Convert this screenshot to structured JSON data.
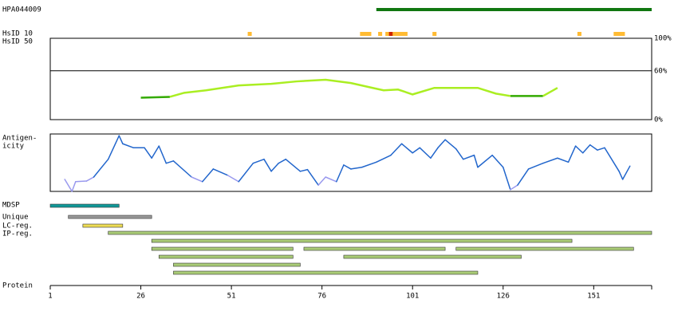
{
  "chart_data": {
    "type": "feature-map",
    "xlim": [
      1,
      167
    ],
    "xticks": [
      1,
      26,
      51,
      76,
      101,
      126,
      151
    ],
    "x_label": "Protein",
    "antibody": {
      "name": "HPA044009",
      "start": 91,
      "end": 167,
      "color": "#117711"
    },
    "hsid10": {
      "name": "HsID 10",
      "positions": [
        56,
        87,
        88,
        89,
        92,
        94,
        95,
        96,
        97,
        98,
        99,
        107,
        147,
        157,
        158,
        159
      ],
      "colors": [
        "#ffbb33",
        "#ffbb33",
        "#ffbb33",
        "#ffbb33",
        "#ffbb33",
        "#ffbb33",
        "#cc2200",
        "#ffbb33",
        "#ffbb33",
        "#ffbb33",
        "#ffbb33",
        "#ffbb33",
        "#ffbb33",
        "#ffbb33",
        "#ffbb33",
        "#ffbb33"
      ]
    },
    "hsid50": {
      "name": "HsID 50",
      "ylim": [
        0,
        100
      ],
      "yticks": [
        {
          "value": 100,
          "label": "100%"
        },
        {
          "value": 60,
          "label": "60%"
        },
        {
          "value": 0,
          "label": "0%"
        }
      ],
      "x": [
        26,
        34,
        38,
        44,
        53,
        62,
        69,
        77,
        84,
        90,
        93,
        97,
        101,
        107,
        112,
        119,
        124,
        128,
        132,
        137,
        141
      ],
      "series": [
        {
          "color": "#33aa00",
          "values": [
            27,
            28,
            null,
            null,
            null,
            null,
            null,
            null,
            null,
            null,
            null,
            null,
            null,
            null,
            null,
            null,
            null,
            29,
            29,
            29,
            null
          ]
        },
        {
          "color": "#aaee22",
          "values": [
            null,
            28,
            33,
            36,
            42,
            44,
            47,
            49,
            45,
            39,
            36,
            37,
            31,
            39,
            39,
            39,
            32,
            29,
            null,
            29,
            39
          ]
        }
      ]
    },
    "antigenicity": {
      "label_lines": [
        "Antigen-",
        "icity"
      ],
      "ylim": [
        0,
        100
      ],
      "x": [
        5,
        7,
        8,
        11,
        13,
        17,
        20,
        21,
        24,
        27,
        29,
        31,
        33,
        35,
        40,
        43,
        46,
        50,
        53,
        57,
        60,
        62,
        64,
        66,
        70,
        72,
        75,
        77,
        80,
        82,
        84,
        87,
        91,
        95,
        98,
        101,
        103,
        106,
        108,
        110,
        113,
        115,
        118,
        119,
        123,
        126,
        128,
        130,
        133,
        137,
        141,
        144,
        146,
        148,
        150,
        152,
        154,
        158,
        159,
        161
      ],
      "values": [
        21,
        0,
        17,
        18,
        25,
        56,
        97,
        83,
        76,
        76,
        58,
        79,
        49,
        53,
        25,
        17,
        39,
        28,
        17,
        49,
        56,
        35,
        49,
        56,
        35,
        38,
        11,
        25,
        17,
        46,
        39,
        42,
        51,
        63,
        83,
        67,
        76,
        58,
        76,
        90,
        74,
        56,
        63,
        42,
        63,
        42,
        3,
        11,
        39,
        49,
        58,
        51,
        79,
        67,
        81,
        72,
        76,
        35,
        21,
        44
      ],
      "color": "#2266cc",
      "low_color": "#9999ee",
      "threshold": 30
    },
    "tracks": [
      {
        "name": "MDSP",
        "color": "#119999",
        "rows": [
          [
            [
              1,
              20
            ]
          ]
        ]
      },
      {
        "name": "Unique",
        "color": "#999999",
        "rows": [
          [
            [
              6,
              29
            ]
          ]
        ]
      },
      {
        "name": "LC-reg.",
        "color": "#eedd55",
        "rows": [
          [
            [
              10,
              21
            ]
          ]
        ]
      },
      {
        "name": "IP-reg.",
        "color": "#aacc77",
        "rows": [
          [
            [
              17,
              167
            ]
          ],
          [
            [
              29,
              145
            ]
          ],
          [
            [
              29,
              68
            ],
            [
              71,
              110
            ],
            [
              113,
              162
            ]
          ],
          [
            [
              31,
              68
            ],
            [
              82,
              131
            ]
          ],
          [
            [
              35,
              70
            ]
          ],
          [
            [
              35,
              119
            ]
          ]
        ]
      }
    ]
  }
}
